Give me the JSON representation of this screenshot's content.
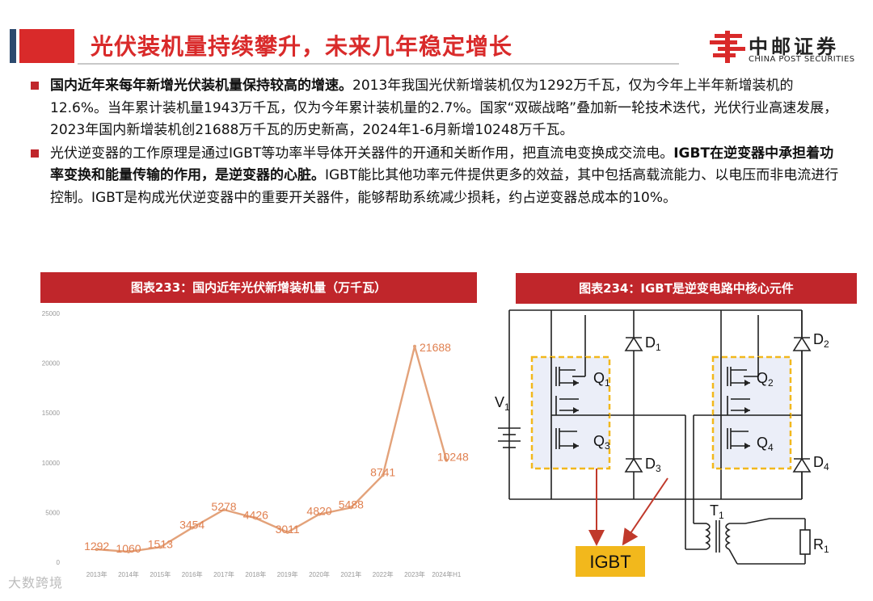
{
  "header": {
    "title": "光伏装机量持续攀升，未来几年稳定增长",
    "logo_cn": "中邮证券",
    "logo_en": "CHINA POST SECURITIES",
    "brand_color": "#d92a2a"
  },
  "bullets": [
    {
      "bold_lead": "国内近年来每年新增光伏装机量保持较高的增速。",
      "text": "2013年我国光伏新增装机仅为1292万千瓦，仅为今年上半年新增装机的12.6%。当年累计装机量1943万千瓦，仅为今年累计装机量的2.7%。国家“双碳战略”叠加新一轮技术迭代，光伏行业高速发展，2023年国内新增装机创21688万千瓦的历史新高，2024年1-6月新增10248万千瓦。"
    },
    {
      "text_before": "光伏逆变器的工作原理是通过IGBT等功率半导体开关器件的开通和关断作用，把直流电变换成交流电。",
      "bold_mid": "IGBT在逆变器中承担着功率变换和能量传输的作用，是逆变器的心脏。",
      "text_after": "IGBT能比其他功率元件提供更多的效益，其中包括高载流能力、以电压而非电流进行控制。IGBT是构成光伏逆变器中的重要开关器件，能够帮助系统减少损耗，约占逆变器总成本的10%。"
    }
  ],
  "chart_title": "图表233：国内近年光伏新增装机量（万千瓦）",
  "diagram_title": "图表234：IGBT是逆变电路中核心元件",
  "chart_data": {
    "type": "line",
    "categories": [
      "2013年",
      "2014年",
      "2015年",
      "2016年",
      "2017年",
      "2018年",
      "2019年",
      "2020年",
      "2021年",
      "2022年",
      "2023年",
      "2024年H1"
    ],
    "values": [
      1292,
      1060,
      1513,
      3454,
      5278,
      4426,
      3011,
      4820,
      5488,
      8741,
      21688,
      10248
    ],
    "y_ticks": [
      "0",
      "5000",
      "10000",
      "15000",
      "20000",
      "25000"
    ],
    "ylim": [
      0,
      25000
    ],
    "line_color": "#e3a27a",
    "label_color": "#e08050",
    "grid": false
  },
  "diagram": {
    "labels": {
      "v1": "V",
      "v1_sub": "1",
      "q1": "Q",
      "q1_sub": "1",
      "q2": "Q",
      "q2_sub": "2",
      "q3": "Q",
      "q3_sub": "3",
      "q4": "Q",
      "q4_sub": "4",
      "d1": "D",
      "d1_sub": "1",
      "d2": "D",
      "d2_sub": "2",
      "d3": "D",
      "d3_sub": "3",
      "d4": "D",
      "d4_sub": "4",
      "t1": "T",
      "t1_sub": "1",
      "r1": "R",
      "r1_sub": "1",
      "igbt": "IGBT"
    },
    "highlight_color": "#f2b81c",
    "arrow_color": "#c0392b"
  },
  "watermark": "大数跨境"
}
